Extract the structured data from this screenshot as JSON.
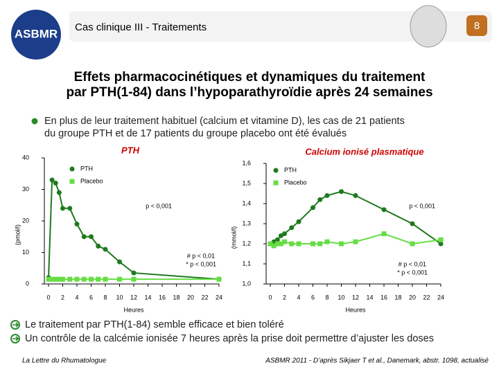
{
  "header": {
    "logo": "ASBMR",
    "section": "Cas clinique III - Traitements",
    "page": "8"
  },
  "title": [
    "Effets pharmacocinétiques et dynamiques du traitement",
    "par PTH(1-84) dans l’hypoparathyroïdie après 24 semaines"
  ],
  "bullet": [
    "En plus de leur traitement habituel (calcium et vitamine D), les cas de 21 patients",
    "du groupe PTH et de 17 patients du groupe placebo ont été évalués"
  ],
  "conclusions": [
    "Le traitement par PTH(1-84) semble efficace et bien toléré",
    "Un contrôle de la calcémie ionisée 7 heures après la prise doit permettre d’ajuster les doses"
  ],
  "footer": {
    "left": "La Lettre du Rhumatologue",
    "right": "ASBMR 2011 - D’après Sikjaer T et al., Danemark, abstr. 1098, actualisé"
  },
  "chart_data": [
    {
      "type": "line",
      "title": "PTH",
      "ylabel": "(pmol/l)",
      "xlabel": "Heures",
      "x": [
        0,
        0.5,
        1,
        1.5,
        2,
        3,
        4,
        5,
        6,
        7,
        8,
        10,
        12,
        24
      ],
      "series": [
        {
          "name": "PTH",
          "color": "#1e7a1e",
          "values": [
            2,
            33,
            32,
            29,
            24,
            24,
            19,
            15,
            15,
            12,
            11,
            7,
            3.5,
            1.5
          ]
        },
        {
          "name": "Placebo",
          "color": "#66dd44",
          "values": [
            1.5,
            1.5,
            1.5,
            1.5,
            1.5,
            1.5,
            1.5,
            1.5,
            1.5,
            1.5,
            1.5,
            1.5,
            1.5,
            1.5
          ]
        }
      ],
      "xlim": [
        0,
        24
      ],
      "xticks": [
        0,
        2,
        4,
        6,
        8,
        10,
        12,
        14,
        16,
        18,
        20,
        22,
        24
      ],
      "ylim": [
        0,
        40
      ],
      "yticks": [
        0,
        10,
        20,
        30,
        40
      ],
      "annotations": [
        "p < 0,001",
        "# p < 0,01",
        "* p < 0,001"
      ]
    },
    {
      "type": "line",
      "title": "Calcium ionisé plasmatique",
      "ylabel": "(mmol/l)",
      "xlabel": "Heures",
      "x": [
        0,
        0.5,
        1,
        1.5,
        2,
        3,
        4,
        6,
        7,
        8,
        10,
        12,
        16,
        20,
        24
      ],
      "series": [
        {
          "name": "PTH",
          "color": "#1e7a1e",
          "values": [
            1.2,
            1.21,
            1.22,
            1.24,
            1.25,
            1.28,
            1.31,
            1.38,
            1.42,
            1.44,
            1.46,
            1.44,
            1.37,
            1.3,
            1.2
          ]
        },
        {
          "name": "Placebo",
          "color": "#66dd44",
          "values": [
            1.2,
            1.19,
            1.2,
            1.2,
            1.21,
            1.2,
            1.2,
            1.2,
            1.2,
            1.21,
            1.2,
            1.21,
            1.25,
            1.2,
            1.22
          ]
        }
      ],
      "xlim": [
        0,
        24
      ],
      "xticks": [
        0,
        2,
        4,
        6,
        8,
        10,
        12,
        14,
        16,
        18,
        20,
        22,
        24
      ],
      "ylim": [
        1.0,
        1.6
      ],
      "yticks": [
        {
          "value": 1.0,
          "label": "1,0"
        },
        {
          "value": 1.1,
          "label": "1,1"
        },
        {
          "value": 1.2,
          "label": "1,2"
        },
        {
          "value": 1.3,
          "label": "1,3"
        },
        {
          "value": 1.4,
          "label": "1,4"
        },
        {
          "value": 1.5,
          "label": "1,5"
        },
        {
          "value": 1.6,
          "label": "1,6"
        }
      ],
      "annotations": [
        "p < 0,001",
        "# p < 0,01",
        "* p < 0,001"
      ]
    }
  ]
}
